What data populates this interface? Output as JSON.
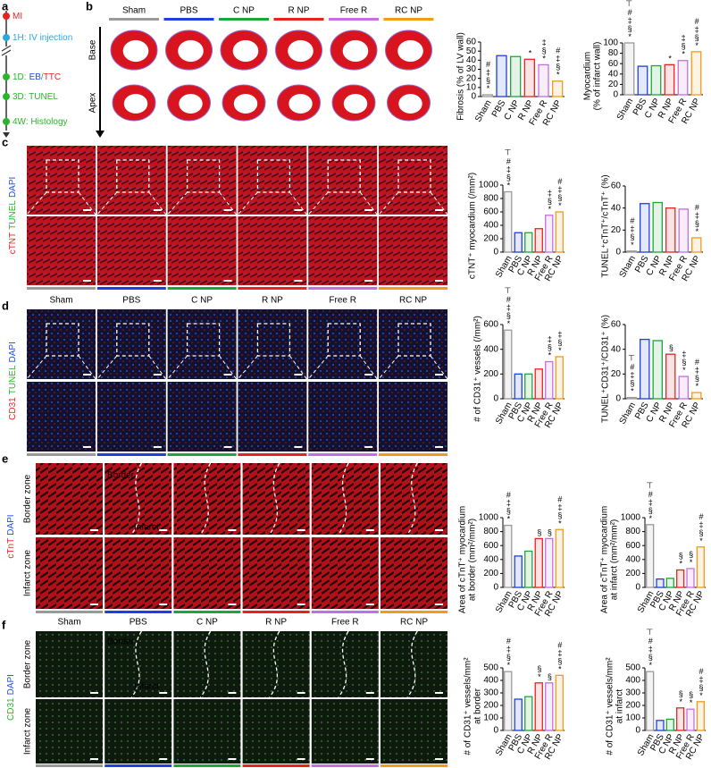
{
  "panel_labels": [
    "a",
    "b",
    "c",
    "d",
    "e",
    "f"
  ],
  "timeline": {
    "events": [
      [
        {
          "text": "MI",
          "color": "#e8231f"
        }
      ],
      [
        {
          "text": "1H: IV injection",
          "color": "#29a8e0"
        }
      ],
      [
        {
          "text": "1D:",
          "color": "#2bb52b"
        },
        {
          "text": "EB",
          "color": "#1f4fe0"
        },
        {
          "text": "/",
          "color": "#2bb52b"
        },
        {
          "text": "TTC",
          "color": "#e8231f"
        }
      ],
      [
        {
          "text": "3D: TUNEL",
          "color": "#2bb52b"
        }
      ],
      [
        {
          "text": "4W: Histology",
          "color": "#2bb52b"
        }
      ]
    ]
  },
  "groups": [
    {
      "name": "Sham",
      "color": "#9a9a9a"
    },
    {
      "name": "PBS",
      "color": "#1f3fe0"
    },
    {
      "name": "C NP",
      "color": "#1aa83a"
    },
    {
      "name": "R NP",
      "color": "#e8231f"
    },
    {
      "name": "Free R",
      "color": "#c46ee0"
    },
    {
      "name": "RC NP",
      "color": "#f29a1a"
    }
  ],
  "b_rows": [
    "Base",
    "Apex"
  ],
  "c_stain": [
    {
      "text": "cTNT",
      "color": "#e8231f"
    },
    {
      "text": "TUNEL",
      "color": "#2bb52b"
    },
    {
      "text": "DAPI",
      "color": "#1f4fe0"
    }
  ],
  "d_stain": [
    {
      "text": "CD31",
      "color": "#e8231f"
    },
    {
      "text": "TUNEL",
      "color": "#2bb52b"
    },
    {
      "text": "DAPI",
      "color": "#1f4fe0"
    }
  ],
  "e_rows": [
    "Border zone",
    "Infarct zone"
  ],
  "e_stain": [
    {
      "text": "cTnT",
      "color": "#e8231f"
    },
    {
      "text": "DAPI",
      "color": "#1f4fe0"
    }
  ],
  "e_zones": [
    "Border",
    "Infarct"
  ],
  "f_rows": [
    "Border zone",
    "Infarct zone"
  ],
  "f_stain": [
    {
      "text": "CD31",
      "color": "#2bb52b"
    },
    {
      "text": "DAPI",
      "color": "#1f4fe0"
    }
  ],
  "f_zones": [
    "Border",
    "Infarct"
  ],
  "chart_data": [
    {
      "type": "bar",
      "ylabel": [
        "Fibrosis (% of LV wall)"
      ],
      "categories": [
        "Sham",
        "PBS",
        "C NP",
        "R NP",
        "Free R",
        "RC NP"
      ],
      "colors": [
        "#9a9a9a",
        "#1f3fe0",
        "#1aa83a",
        "#e8231f",
        "#c46ee0",
        "#f29a1a"
      ],
      "values": [
        2,
        45,
        44,
        41,
        35,
        17
      ],
      "sig": [
        "#‡§*",
        null,
        null,
        "*",
        "‡§*",
        "#‡§*"
      ],
      "ylim": [
        0,
        60
      ],
      "yticks": [
        0,
        10,
        20,
        30,
        40,
        50,
        60
      ]
    },
    {
      "type": "bar",
      "ylabel": [
        "Myocardium",
        "(% of infarct wall)"
      ],
      "categories": [
        "Sham",
        "PBS",
        "C NP",
        "R NP",
        "Free R",
        "RC NP"
      ],
      "colors": [
        "#9a9a9a",
        "#1f3fe0",
        "#1aa83a",
        "#e8231f",
        "#c46ee0",
        "#f29a1a"
      ],
      "values": [
        100,
        55,
        56,
        58,
        66,
        83
      ],
      "sig": [
        "⊤#‡§*",
        null,
        null,
        "*",
        "‡§*",
        "#‡§*"
      ],
      "ylim": [
        0,
        100
      ],
      "yticks": [
        0,
        20,
        40,
        60,
        80,
        100
      ]
    },
    {
      "type": "bar",
      "ylabel": [
        "cTNT⁺ myocardium (/mm²)"
      ],
      "categories": [
        "Sham",
        "PBS",
        "C NP",
        "R NP",
        "Free R",
        "RC NP"
      ],
      "colors": [
        "#9a9a9a",
        "#1f3fe0",
        "#1aa83a",
        "#e8231f",
        "#c46ee0",
        "#f29a1a"
      ],
      "values": [
        900,
        290,
        290,
        350,
        550,
        600
      ],
      "sig": [
        "⊤#‡§*",
        null,
        null,
        null,
        "‡§*",
        "#‡§*"
      ],
      "ylim": [
        0,
        1000
      ],
      "yticks": [
        0,
        200,
        400,
        600,
        800,
        1000
      ]
    },
    {
      "type": "bar",
      "ylabel": [
        "TUNEL⁺cTnT⁺/cTnT⁺ (%)"
      ],
      "categories": [
        "Sham",
        "PBS",
        "C NP",
        "R NP",
        "Free R",
        "RC NP"
      ],
      "colors": [
        "#9a9a9a",
        "#1f3fe0",
        "#1aa83a",
        "#e8231f",
        "#c46ee0",
        "#f29a1a"
      ],
      "values": [
        1,
        44,
        45,
        40,
        39,
        13
      ],
      "sig": [
        "#‡§*",
        null,
        null,
        null,
        null,
        "#‡§*"
      ],
      "ylim": [
        0,
        60
      ],
      "yticks": [
        0,
        20,
        40,
        60
      ]
    },
    {
      "type": "bar",
      "ylabel": [
        "# of CD31⁺ vessels (/mm²)"
      ],
      "categories": [
        "Sham",
        "PBS",
        "C NP",
        "R NP",
        "Free R",
        "RC NP"
      ],
      "colors": [
        "#9a9a9a",
        "#1f3fe0",
        "#1aa83a",
        "#e8231f",
        "#c46ee0",
        "#f29a1a"
      ],
      "values": [
        555,
        200,
        200,
        240,
        300,
        340
      ],
      "sig": [
        "⊤#‡§*",
        null,
        null,
        null,
        "‡§*",
        "‡§*"
      ],
      "ylim": [
        0,
        600
      ],
      "yticks": [
        0,
        200,
        400,
        600
      ]
    },
    {
      "type": "bar",
      "ylabel": [
        "TUNEL⁺CD31⁺/CD31⁺ (%)"
      ],
      "categories": [
        "Sham",
        "PBS",
        "C NP",
        "R NP",
        "Free R",
        "RC NP"
      ],
      "colors": [
        "#9a9a9a",
        "#1f3fe0",
        "#1aa83a",
        "#e8231f",
        "#c46ee0",
        "#f29a1a"
      ],
      "values": [
        1,
        48,
        47,
        36,
        18,
        5
      ],
      "sig": [
        "⊤#‡§*",
        null,
        null,
        "§",
        "‡§*",
        "#‡§*"
      ],
      "ylim": [
        0,
        60
      ],
      "yticks": [
        0,
        20,
        40,
        60
      ]
    },
    {
      "type": "bar",
      "ylabel": [
        "Area of cTnT⁺ myocardium",
        "at border (mm²/mm²)"
      ],
      "categories": [
        "Sham",
        "PBS",
        "C NP",
        "R NP",
        "Free R",
        "RC NP"
      ],
      "colors": [
        "#9a9a9a",
        "#1f3fe0",
        "#1aa83a",
        "#e8231f",
        "#c46ee0",
        "#f29a1a"
      ],
      "values": [
        890,
        450,
        520,
        700,
        700,
        830
      ],
      "sig": [
        "#‡§*",
        null,
        null,
        "§",
        "§",
        "#‡§*"
      ],
      "ylim": [
        0,
        1000
      ],
      "yticks": [
        0,
        200,
        400,
        600,
        800,
        1000
      ]
    },
    {
      "type": "bar",
      "ylabel": [
        "Area of cTnT⁺ myocardium",
        "at infarct (mm²/mm²)"
      ],
      "categories": [
        "Sham",
        "PBS",
        "C NP",
        "R NP",
        "Free R",
        "RC NP"
      ],
      "colors": [
        "#9a9a9a",
        "#1f3fe0",
        "#1aa83a",
        "#e8231f",
        "#c46ee0",
        "#f29a1a"
      ],
      "values": [
        900,
        120,
        130,
        250,
        270,
        580
      ],
      "sig": [
        "⊤#‡§*",
        null,
        null,
        "§*",
        "§*",
        "#‡§*"
      ],
      "ylim": [
        0,
        1000
      ],
      "yticks": [
        0,
        200,
        400,
        600,
        800,
        1000
      ]
    },
    {
      "type": "bar",
      "ylabel": [
        "# of CD31⁺ vessels/mm²",
        "at border"
      ],
      "categories": [
        "Sham",
        "PBS",
        "C NP",
        "R NP",
        "Free R",
        "RC NP"
      ],
      "colors": [
        "#9a9a9a",
        "#1f3fe0",
        "#1aa83a",
        "#e8231f",
        "#c46ee0",
        "#f29a1a"
      ],
      "values": [
        470,
        250,
        270,
        380,
        380,
        440
      ],
      "sig": [
        "#‡§*",
        null,
        null,
        "§*",
        "§",
        "#‡§*"
      ],
      "ylim": [
        0,
        500
      ],
      "yticks": [
        0,
        100,
        200,
        300,
        400,
        500
      ]
    },
    {
      "type": "bar",
      "ylabel": [
        "# of CD31⁺ vessels/mm²",
        "at infarct"
      ],
      "categories": [
        "Sham",
        "PBS",
        "C NP",
        "R NP",
        "Free R",
        "RC NP"
      ],
      "colors": [
        "#9a9a9a",
        "#1f3fe0",
        "#1aa83a",
        "#e8231f",
        "#c46ee0",
        "#f29a1a"
      ],
      "values": [
        470,
        80,
        90,
        180,
        170,
        230
      ],
      "sig": [
        "⊤#‡§*",
        null,
        null,
        "§*",
        "§*",
        "#‡§*"
      ],
      "ylim": [
        0,
        500
      ],
      "yticks": [
        0,
        100,
        200,
        300,
        400,
        500
      ]
    }
  ]
}
